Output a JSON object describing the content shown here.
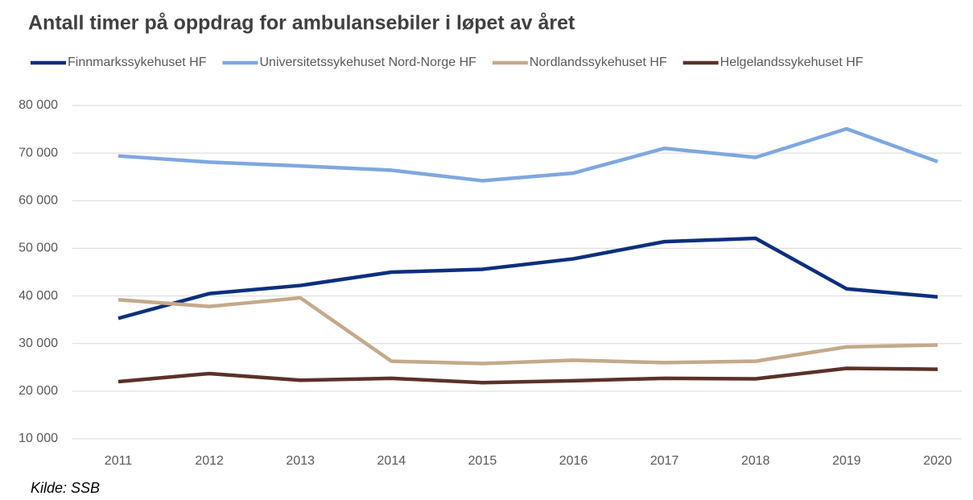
{
  "chart_data": {
    "type": "line",
    "title": "Antall timer på oppdrag for ambulansebiler i løpet av året",
    "source": "Kilde: SSB",
    "categories": [
      "2011",
      "2012",
      "2013",
      "2014",
      "2015",
      "2016",
      "2017",
      "2018",
      "2019",
      "2020"
    ],
    "series": [
      {
        "name": "Finnmarkssykehuset HF",
        "color": "#0d2f7e",
        "values": [
          35300,
          40500,
          42200,
          45000,
          45600,
          47800,
          51400,
          52100,
          41500,
          39800
        ]
      },
      {
        "name": "Universitetssykehuset Nord-Norge HF",
        "color": "#7fa7e0",
        "values": [
          69400,
          68100,
          67300,
          66400,
          64200,
          65800,
          71000,
          69100,
          75100,
          68200
        ]
      },
      {
        "name": "Nordlandssykehuset HF",
        "color": "#c4a98b",
        "values": [
          39200,
          37800,
          39600,
          26300,
          25800,
          26500,
          26000,
          26300,
          29300,
          29700
        ]
      },
      {
        "name": "Helgelandssykehuset HF",
        "color": "#5b3129",
        "values": [
          22000,
          23700,
          22300,
          22700,
          21800,
          22200,
          22700,
          22600,
          24800,
          24600
        ]
      }
    ],
    "ylim": [
      10000,
      80000
    ],
    "yticks": [
      {
        "value": 10000,
        "label": "10 000"
      },
      {
        "value": 20000,
        "label": "20 000"
      },
      {
        "value": 30000,
        "label": "30 000"
      },
      {
        "value": 40000,
        "label": "40 000"
      },
      {
        "value": 50000,
        "label": "50 000"
      },
      {
        "value": 60000,
        "label": "60 000"
      },
      {
        "value": 70000,
        "label": "70 000"
      },
      {
        "value": 80000,
        "label": "80 000"
      }
    ],
    "grid": true,
    "legend": "top"
  }
}
